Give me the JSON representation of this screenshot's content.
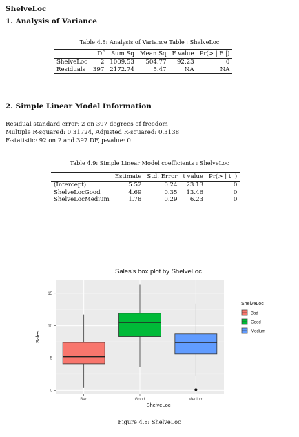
{
  "doc_title": "ShelveLoc",
  "section1": "1. Analysis of Variance",
  "anova_table": {
    "caption": "Table 4.8: Analysis of Variance Table : ShelveLoc",
    "headers": [
      "",
      "Df",
      "Sum Sq",
      "Mean Sq",
      "F value",
      "Pr(> | F |)"
    ],
    "rows": [
      [
        "ShelveLoc",
        "2",
        "1009.53",
        "504.77",
        "92.23",
        "0"
      ],
      [
        "Residuals",
        "397",
        "2172.74",
        "5.47",
        "NA",
        "NA"
      ]
    ]
  },
  "section2": "2. Simple Linear Model Information",
  "model_info": {
    "line1": "Residual standard error: 2 on 397 degrees of freedom",
    "line2": "Multiple R-squared: 0.31724, Adjusted R-squared: 0.3138",
    "line3": "F-statistic: 92 on 2 and 397 DF, p-value: 0"
  },
  "coef_table": {
    "caption": "Table 4.9: Simple Linear Model coefficients : ShelveLoc",
    "headers": [
      "",
      "Estimate",
      "Std. Error",
      "t value",
      "Pr(> | t |)"
    ],
    "rows": [
      [
        "(Intercept)",
        "5.52",
        "0.24",
        "23.13",
        "0"
      ],
      [
        "ShelveLocGood",
        "4.69",
        "0.35",
        "13.46",
        "0"
      ],
      [
        "ShelveLocMedium",
        "1.78",
        "0.29",
        "6.23",
        "0"
      ]
    ]
  },
  "figure_caption": "Figure 4.8: ShelveLoc",
  "chart_data": {
    "type": "box",
    "title": "Sales's box plot by ShelveLoc",
    "xlabel": "ShelveLoc",
    "ylabel": "Sales",
    "ylim": [
      -0.5,
      17
    ],
    "yticks": [
      0,
      5,
      10,
      15
    ],
    "categories": [
      "Bad",
      "Good",
      "Medium"
    ],
    "legend_title": "ShelveLoc",
    "legend_position": "right",
    "grid": true,
    "background": "#EBEBEB",
    "series": [
      {
        "name": "Bad",
        "color": "#F8766D",
        "min": 0.37,
        "q1": 4.1,
        "median": 5.2,
        "q3": 7.4,
        "max": 11.7,
        "outliers": []
      },
      {
        "name": "Good",
        "color": "#00BA38",
        "min": 3.6,
        "q1": 8.3,
        "median": 10.5,
        "q3": 11.9,
        "max": 16.3,
        "outliers": []
      },
      {
        "name": "Medium",
        "color": "#619CFF",
        "min": 2.3,
        "q1": 5.6,
        "median": 7.4,
        "q3": 8.7,
        "max": 13.4,
        "outliers": [
          0.1
        ]
      }
    ]
  }
}
